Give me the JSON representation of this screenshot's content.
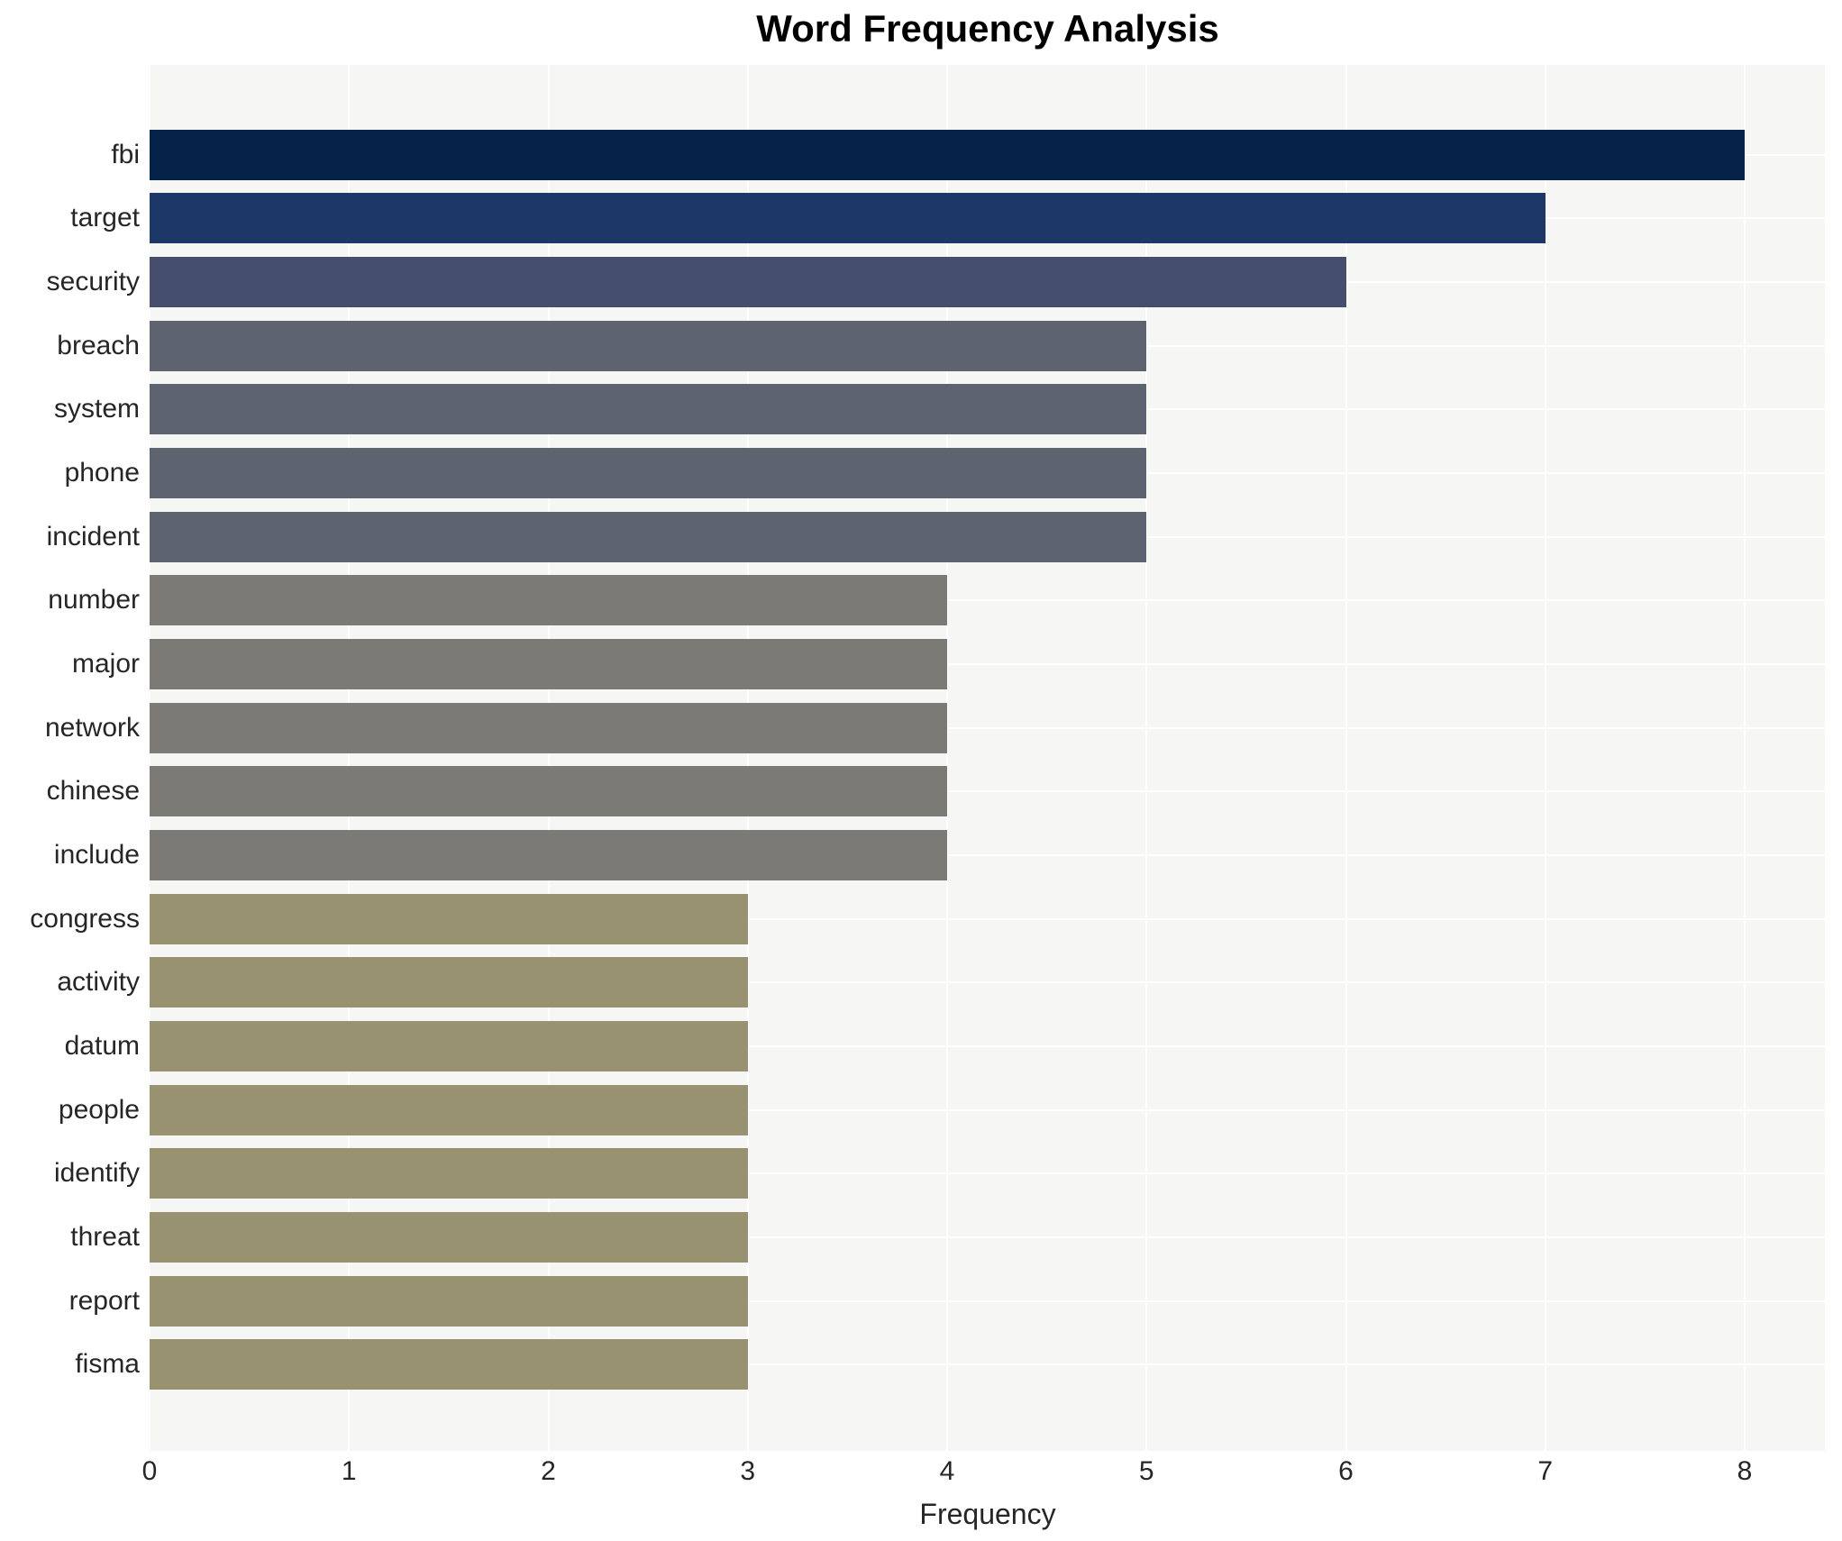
{
  "title": "Word Frequency Analysis",
  "colors": {
    "figure_bg": "#ffffff",
    "plot_bg": "#f6f6f4",
    "grid": "#ffffff",
    "text": "#262626",
    "title_text": "#000000"
  },
  "chart_data": {
    "type": "bar",
    "orientation": "horizontal",
    "title": "Word Frequency Analysis",
    "xlabel": "Frequency",
    "ylabel": "",
    "grid": true,
    "legend": false,
    "xlim": [
      0,
      8.4
    ],
    "x_ticks": [
      0,
      1,
      2,
      3,
      4,
      5,
      6,
      7,
      8
    ],
    "categories": [
      "fbi",
      "target",
      "security",
      "breach",
      "system",
      "phone",
      "incident",
      "number",
      "major",
      "network",
      "chinese",
      "include",
      "congress",
      "activity",
      "datum",
      "people",
      "identify",
      "threat",
      "report",
      "fisma"
    ],
    "values": [
      8,
      7,
      6,
      5,
      5,
      5,
      5,
      4,
      4,
      4,
      4,
      4,
      3,
      3,
      3,
      3,
      3,
      3,
      3,
      3
    ],
    "bar_colors": [
      "#052249",
      "#1d3868",
      "#454f6d",
      "#5d636f",
      "#5d636f",
      "#5d636f",
      "#5d636f",
      "#7b7a75",
      "#7b7a75",
      "#7b7a75",
      "#7b7a75",
      "#7b7a75",
      "#999270",
      "#999270",
      "#999270",
      "#999270",
      "#999270",
      "#999270",
      "#999270",
      "#999270"
    ]
  }
}
